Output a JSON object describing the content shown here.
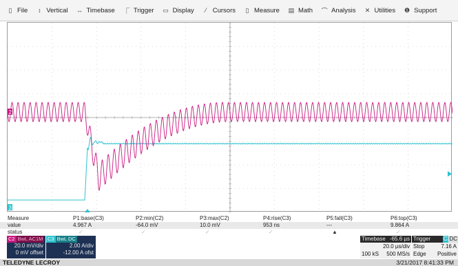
{
  "menu": [
    {
      "label": "File",
      "icon": "file-icon",
      "glyph": "▯"
    },
    {
      "label": "Vertical",
      "icon": "vertical-arrows-icon",
      "glyph": "↕"
    },
    {
      "label": "Timebase",
      "icon": "horizontal-arrows-icon",
      "glyph": "↔"
    },
    {
      "label": "Trigger",
      "icon": "trigger-icon",
      "glyph": "⎾"
    },
    {
      "label": "Display",
      "icon": "display-icon",
      "glyph": "▭"
    },
    {
      "label": "Cursors",
      "icon": "cursor-icon",
      "glyph": "⁄"
    },
    {
      "label": "Measure",
      "icon": "measure-icon",
      "glyph": "▯"
    },
    {
      "label": "Math",
      "icon": "math-icon",
      "glyph": "▤"
    },
    {
      "label": "Analysis",
      "icon": "analysis-icon",
      "glyph": "⌒"
    },
    {
      "label": "Utilities",
      "icon": "wrench-icon",
      "glyph": "✕"
    },
    {
      "label": "Support",
      "icon": "info-icon",
      "glyph": "❶"
    }
  ],
  "colors": {
    "magenta": "#c8177f",
    "cyan": "#2ec2cf",
    "grid": "#bdbdbd",
    "dark_blue": "#1d3154"
  },
  "measure": {
    "row_labels": [
      "Measure",
      "value",
      "status"
    ],
    "params": [
      {
        "name": "P1:base(C3)",
        "value": "4.967 A"
      },
      {
        "name": "P2:min(C2)",
        "value": "-64.0 mV"
      },
      {
        "name": "P3:max(C2)",
        "value": "10.0 mV"
      },
      {
        "name": "P4:rise(C3)",
        "value": "953 ns"
      },
      {
        "name": "P5:fall(C3)",
        "value": "---"
      },
      {
        "name": "P6:top(C3)",
        "value": "9.864 A"
      }
    ]
  },
  "channels": {
    "c2": {
      "tag": "C2",
      "coupling": "BwL AC1M",
      "vdiv": "20.0 mV/div",
      "offset": "0 mV offset"
    },
    "c3": {
      "tag": "C3",
      "coupling": "BwL DC",
      "vdiv": "2.00 A/div",
      "offset": "-12.00 A ofst"
    }
  },
  "timebase": {
    "label": "Timebase",
    "delay": "-65.6 µs",
    "tdiv": "20.0 µs/div",
    "samples": "100 kS",
    "rate": "500 MS/s",
    "trigger_label": "Trigger",
    "trigger_channel": "C3",
    "trigger_coupling": "DC",
    "mode": "Stop",
    "level": "7.16 A",
    "type": "Edge",
    "slope": "Positive"
  },
  "footer": {
    "brand": "TELEDYNE LECROY",
    "datetime": "3/21/2017 8:41:33 PM"
  },
  "markers": {
    "c2_marker": "2",
    "c3_marker": "3"
  }
}
